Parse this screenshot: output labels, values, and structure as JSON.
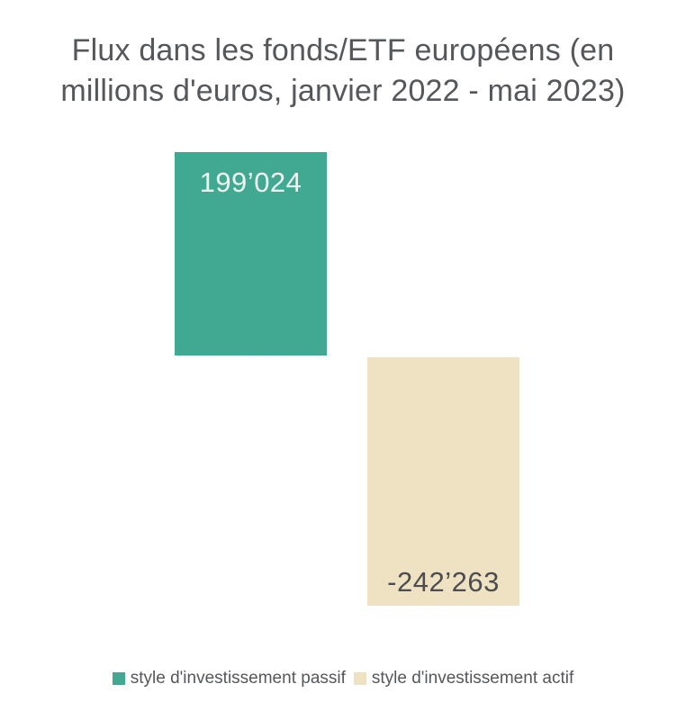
{
  "chart_data": {
    "type": "bar",
    "title": "Flux dans les fonds/ETF européens (en millions d'euros, janvier 2022 - mai 2023)",
    "categories": [
      "style d'investissement passif",
      "style d'investissement actif"
    ],
    "values": [
      199024,
      -242263
    ],
    "value_labels": [
      "199’024",
      "-242’263"
    ],
    "colors": [
      "#41a892",
      "#efe2c3"
    ],
    "series": [
      {
        "name": "style d'investissement passif",
        "value": 199024,
        "color": "#41a892"
      },
      {
        "name": "style d'investissement actif",
        "value": -242263,
        "color": "#efe2c3"
      }
    ],
    "baseline": 0,
    "xlabel": "",
    "ylabel": "",
    "grid": false,
    "axes_visible": false,
    "legend_position": "bottom",
    "value_label_positions": [
      "inside-top",
      "inside-bottom"
    ]
  },
  "header": {
    "lines": [
      "Flux dans les fonds/ETF européens (en",
      "millions d'euros, janvier 2022 - mai 2023)"
    ]
  },
  "text_colors": {
    "title": "#55575b",
    "label_on_green": "#eef6f2",
    "label_on_beige": "#4b4d50",
    "legend": "#55575b"
  }
}
